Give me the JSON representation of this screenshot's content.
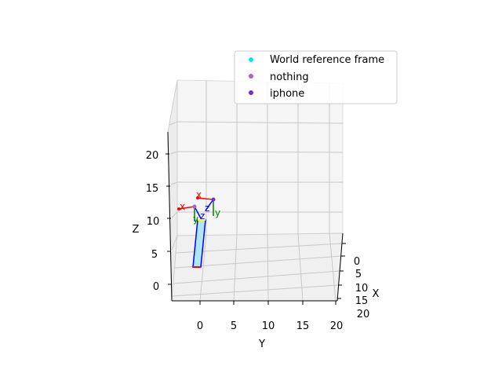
{
  "chart_data": {
    "type": "scatter3d",
    "title": "",
    "xlabel": "X",
    "ylabel": "Y",
    "zlabel": "Z",
    "x_ticks": [
      "0",
      "5",
      "10",
      "15",
      "20"
    ],
    "y_ticks": [
      "0",
      "5",
      "10",
      "15",
      "20"
    ],
    "z_ticks": [
      "0",
      "5",
      "10",
      "15",
      "20"
    ],
    "legend": [
      {
        "label": "World reference frame",
        "color": "#00e5ff"
      },
      {
        "label": "nothing",
        "color": "#b060c0"
      },
      {
        "label": "iphone",
        "color": "#7030d0"
      }
    ],
    "frames": [
      {
        "name": "nothing",
        "axes": [
          {
            "label": "x",
            "color": "#ff0000"
          },
          {
            "label": "y",
            "color": "#008000"
          },
          {
            "label": "z",
            "color": "#0000ff"
          }
        ]
      },
      {
        "name": "iphone",
        "axes": [
          {
            "label": "x",
            "color": "#ff0000"
          },
          {
            "label": "y",
            "color": "#008000"
          },
          {
            "label": "z",
            "color": "#0000ff"
          }
        ]
      }
    ],
    "object": {
      "name": "phone box",
      "fill": "#aee6f5",
      "edge": "#0000ff"
    }
  }
}
